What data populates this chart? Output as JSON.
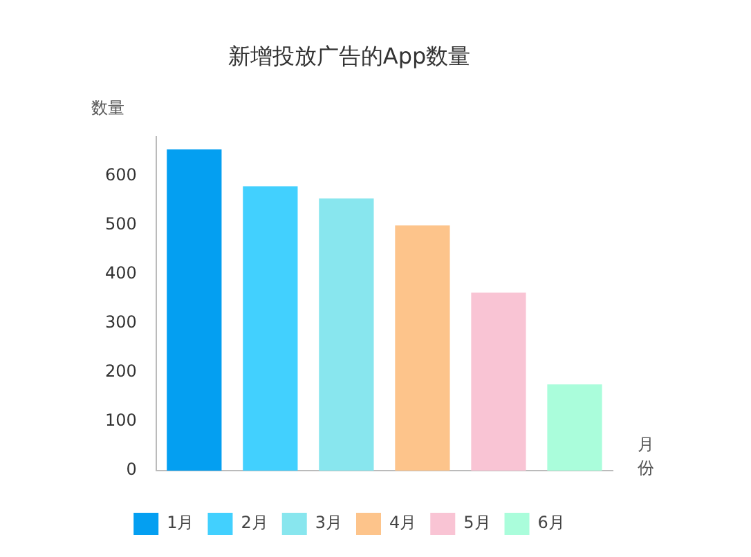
{
  "chart_data": {
    "type": "bar",
    "title": "新增投放广告的App数量",
    "ylabel": "数量",
    "xlabel": "月份",
    "categories": [
      null,
      null,
      null,
      null,
      null,
      null
    ],
    "series": [
      {
        "name": "1月",
        "color": "#049ff1",
        "values": [
          655,
          null,
          null,
          null,
          null,
          null
        ]
      },
      {
        "name": "2月",
        "color": "#42d0fe",
        "values": [
          null,
          580,
          null,
          null,
          null,
          null
        ]
      },
      {
        "name": "3月",
        "color": "#88e6ee",
        "values": [
          null,
          null,
          555,
          null,
          null,
          null
        ]
      },
      {
        "name": "4月",
        "color": "#fdc48b",
        "values": [
          null,
          null,
          null,
          500,
          null,
          null
        ]
      },
      {
        "name": "5月",
        "color": "#f9c4d4",
        "values": [
          null,
          null,
          null,
          null,
          363,
          null
        ]
      },
      {
        "name": "6月",
        "color": "#aafddb",
        "values": [
          null,
          null,
          null,
          null,
          null,
          176
        ]
      }
    ],
    "ylim": [
      0,
      680
    ],
    "yticks": [
      0,
      100,
      200,
      300,
      400,
      500,
      600
    ],
    "grid": false,
    "legend": "bottom"
  }
}
